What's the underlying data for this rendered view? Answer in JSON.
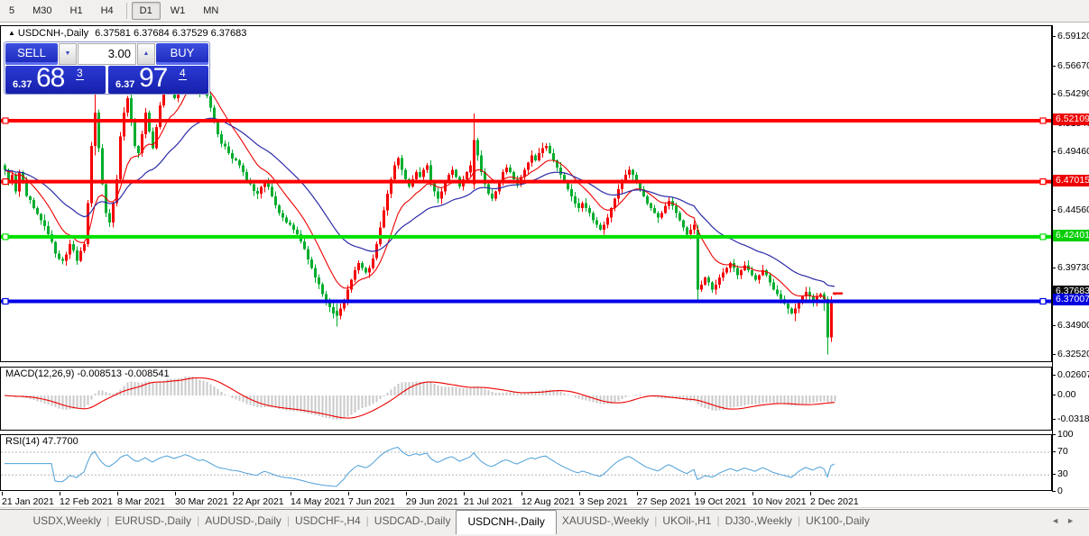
{
  "toolbar": {
    "items": [
      "5",
      "M30",
      "H1",
      "H4",
      "D1",
      "W1",
      "MN"
    ],
    "active": "D1",
    "separator_after": "H4"
  },
  "chart_header": {
    "direction_icon": "▲",
    "title": "USDCNH-,Daily",
    "ohlc": "6.37581 6.37684 6.37529 6.37683"
  },
  "trade_panel": {
    "sell_label": "SELL",
    "buy_label": "BUY",
    "volume": "3.00",
    "spinner_down_icon": "▼",
    "spinner_up_icon": "▲",
    "sell_price_prefix": "6.37",
    "sell_price_big": "68",
    "sell_price_pip": "3",
    "buy_price_prefix": "6.37",
    "buy_price_big": "97",
    "buy_price_pip": "4"
  },
  "price_axis": {
    "labels": [
      {
        "text": "6.59120",
        "price": 6.5912
      },
      {
        "text": "6.56670",
        "price": 6.5667
      },
      {
        "text": "6.54290",
        "price": 6.5429
      },
      {
        "text": "6.51840",
        "price": 6.5184
      },
      {
        "text": "6.49460",
        "price": 6.4946
      },
      {
        "text": "6.44560",
        "price": 6.4456
      },
      {
        "text": "6.39730",
        "price": 6.3973
      },
      {
        "text": "6.34900",
        "price": 6.349
      },
      {
        "text": "6.32520",
        "price": 6.3252
      }
    ],
    "badges": [
      {
        "text": "6.52109",
        "price": 6.52109,
        "bg": "#ee0000"
      },
      {
        "text": "6.47015",
        "price": 6.47015,
        "bg": "#ee0000"
      },
      {
        "text": "6.42401",
        "price": 6.42401,
        "bg": "#00ce00"
      },
      {
        "text": "6.37683",
        "price": 6.37683,
        "bg": "#0a0a0a"
      },
      {
        "text": "6.37007",
        "price": 6.37007,
        "bg": "#0000e0"
      }
    ]
  },
  "indicators": {
    "macd": {
      "label": "MACD(12,26,9) -0.008513 -0.008541",
      "axis": [
        {
          "text": "0.02607",
          "v": 0.02607
        },
        {
          "text": "0.00",
          "v": 0.0
        },
        {
          "text": "-0.03187",
          "v": -0.03187
        }
      ],
      "current_main": "-0.008513",
      "current_signal": "-0.008541"
    },
    "rsi": {
      "label": "RSI(14) 47.7700",
      "axis": [
        {
          "text": "100",
          "v": 100
        },
        {
          "text": "70",
          "v": 70
        },
        {
          "text": "30",
          "v": 30
        },
        {
          "text": "0",
          "v": 0
        }
      ],
      "levels": [
        70,
        30
      ],
      "current": "47.7700"
    }
  },
  "date_axis": [
    "21 Jan 2021",
    "12 Feb 2021",
    "8 Mar 2021",
    "30 Mar 2021",
    "22 Apr 2021",
    "14 May 2021",
    "7 Jun 2021",
    "29 Jun 2021",
    "21 Jul 2021",
    "12 Aug 2021",
    "3 Sep 2021",
    "27 Sep 2021",
    "19 Oct 2021",
    "10 Nov 2021",
    "2 Dec 2021"
  ],
  "tabs": {
    "items": [
      "USDX,Weekly",
      "EURUSD-,Daily",
      "AUDUSD-,Daily",
      "USDCHF-,H4",
      "USDCAD-,Daily",
      "USDCNH-,Daily",
      "XAUUSD-,Weekly",
      "UKOil-,H1",
      "DJ30-,Weekly",
      "UK100-,Daily"
    ],
    "active": "USDCNH-,Daily",
    "scroll_left_icon": "◄",
    "scroll_right_icon": "►"
  },
  "colors": {
    "bull": "#f50000",
    "bear": "#00ad2d",
    "ma_fast": "#ee0000",
    "ma_slow": "#2c2ca8",
    "macd_hist": "#c9c9c9",
    "macd_signal": "#ee0000",
    "rsi_line": "#4d9fd8",
    "level_red": "#ff0000",
    "level_green": "#00e000",
    "level_blue": "#0000e8",
    "panel_blue": "#2233cc"
  },
  "chart_data": {
    "type": "candlestick",
    "symbol": "USDCNH-",
    "timeframe": "Daily",
    "color_convention": "red = bullish, green = bearish",
    "ylim": [
      6.3184,
      6.6002
    ],
    "y_ticks": [
      "6.59120",
      "6.56670",
      "6.54290",
      "6.51840",
      "6.49460",
      "6.44560",
      "6.39730",
      "6.34900",
      "6.32520"
    ],
    "x_tick_labels": [
      "21 Jan 2021",
      "12 Feb 2021",
      "8 Mar 2021",
      "30 Mar 2021",
      "22 Apr 2021",
      "14 May 2021",
      "7 Jun 2021",
      "29 Jun 2021",
      "21 Jul 2021",
      "12 Aug 2021",
      "3 Sep 2021",
      "27 Sep 2021",
      "19 Oct 2021",
      "10 Nov 2021",
      "2 Dec 2021"
    ],
    "x_tick_indices": [
      0,
      16,
      32,
      48,
      64,
      80,
      96,
      112,
      128,
      144,
      160,
      176,
      192,
      208,
      224
    ],
    "num_candles": 231,
    "current_bar": {
      "open": 6.37581,
      "high": 6.37684,
      "low": 6.37529,
      "close": 6.37683
    },
    "horizontal_levels": [
      {
        "price": 6.52109,
        "color": "#ff0000",
        "width": 4
      },
      {
        "price": 6.47015,
        "color": "#ff0000",
        "width": 4
      },
      {
        "price": 6.42401,
        "color": "#00e000",
        "width": 4
      },
      {
        "price": 6.37007,
        "color": "#0000e8",
        "width": 4
      }
    ],
    "indicator_settings": {
      "ma_fast_period": 12,
      "ma_slow_period": 33,
      "macd": [
        12,
        26,
        9
      ],
      "rsi_period": 14
    },
    "close_waypoints": [
      [
        0,
        6.48
      ],
      [
        1,
        6.47
      ],
      [
        2,
        6.476
      ],
      [
        3,
        6.462
      ],
      [
        4,
        6.478
      ],
      [
        5,
        6.47
      ],
      [
        6,
        6.458
      ],
      [
        8,
        6.448
      ],
      [
        10,
        6.438
      ],
      [
        12,
        6.426
      ],
      [
        14,
        6.41
      ],
      [
        16,
        6.404
      ],
      [
        18,
        6.418
      ],
      [
        20,
        6.404
      ],
      [
        22,
        6.418
      ],
      [
        23,
        6.452
      ],
      [
        24,
        6.5
      ],
      [
        25,
        6.528
      ],
      [
        26,
        6.498
      ],
      [
        27,
        6.468
      ],
      [
        28,
        6.444
      ],
      [
        29,
        6.436
      ],
      [
        30,
        6.452
      ],
      [
        31,
        6.472
      ],
      [
        32,
        6.508
      ],
      [
        33,
        6.528
      ],
      [
        34,
        6.54
      ],
      [
        35,
        6.52
      ],
      [
        36,
        6.5
      ],
      [
        37,
        6.494
      ],
      [
        38,
        6.51
      ],
      [
        39,
        6.528
      ],
      [
        40,
        6.512
      ],
      [
        41,
        6.498
      ],
      [
        42,
        6.516
      ],
      [
        43,
        6.534
      ],
      [
        44,
        6.545
      ],
      [
        45,
        6.556
      ],
      [
        46,
        6.548
      ],
      [
        47,
        6.54
      ],
      [
        48,
        6.552
      ],
      [
        49,
        6.562
      ],
      [
        50,
        6.576
      ],
      [
        51,
        6.57
      ],
      [
        52,
        6.562
      ],
      [
        53,
        6.552
      ],
      [
        54,
        6.545
      ],
      [
        55,
        6.55
      ],
      [
        56,
        6.542
      ],
      [
        57,
        6.532
      ],
      [
        58,
        6.52
      ],
      [
        59,
        6.51
      ],
      [
        60,
        6.502
      ],
      [
        62,
        6.494
      ],
      [
        64,
        6.488
      ],
      [
        66,
        6.478
      ],
      [
        68,
        6.468
      ],
      [
        70,
        6.46
      ],
      [
        72,
        6.47
      ],
      [
        74,
        6.458
      ],
      [
        76,
        6.444
      ],
      [
        78,
        6.436
      ],
      [
        80,
        6.43
      ],
      [
        82,
        6.42
      ],
      [
        84,
        6.405
      ],
      [
        86,
        6.39
      ],
      [
        88,
        6.376
      ],
      [
        90,
        6.365
      ],
      [
        92,
        6.358
      ],
      [
        93,
        6.364
      ],
      [
        94,
        6.37
      ],
      [
        95,
        6.38
      ],
      [
        96,
        6.388
      ],
      [
        97,
        6.396
      ],
      [
        98,
        6.402
      ],
      [
        99,
        6.398
      ],
      [
        100,
        6.394
      ],
      [
        101,
        6.398
      ],
      [
        102,
        6.406
      ],
      [
        103,
        6.418
      ],
      [
        104,
        6.432
      ],
      [
        105,
        6.446
      ],
      [
        106,
        6.46
      ],
      [
        107,
        6.472
      ],
      [
        108,
        6.484
      ],
      [
        109,
        6.49
      ],
      [
        110,
        6.48
      ],
      [
        111,
        6.472
      ],
      [
        112,
        6.466
      ],
      [
        113,
        6.472
      ],
      [
        114,
        6.478
      ],
      [
        115,
        6.474
      ],
      [
        116,
        6.48
      ],
      [
        117,
        6.484
      ],
      [
        118,
        6.47
      ],
      [
        119,
        6.462
      ],
      [
        120,
        6.456
      ],
      [
        121,
        6.462
      ],
      [
        122,
        6.47
      ],
      [
        123,
        6.476
      ],
      [
        124,
        6.48
      ],
      [
        125,
        6.474
      ],
      [
        126,
        6.466
      ],
      [
        127,
        6.472
      ],
      [
        128,
        6.478
      ],
      [
        129,
        6.484
      ],
      [
        130,
        6.505
      ],
      [
        131,
        6.492
      ],
      [
        132,
        6.478
      ],
      [
        133,
        6.468
      ],
      [
        134,
        6.46
      ],
      [
        135,
        6.456
      ],
      [
        136,
        6.462
      ],
      [
        137,
        6.47
      ],
      [
        138,
        6.478
      ],
      [
        139,
        6.482
      ],
      [
        140,
        6.478
      ],
      [
        141,
        6.472
      ],
      [
        142,
        6.468
      ],
      [
        143,
        6.474
      ],
      [
        144,
        6.48
      ],
      [
        145,
        6.486
      ],
      [
        146,
        6.492
      ],
      [
        147,
        6.488
      ],
      [
        148,
        6.494
      ],
      [
        149,
        6.498
      ],
      [
        150,
        6.5
      ],
      [
        151,
        6.494
      ],
      [
        152,
        6.488
      ],
      [
        153,
        6.482
      ],
      [
        154,
        6.476
      ],
      [
        155,
        6.47
      ],
      [
        156,
        6.464
      ],
      [
        157,
        6.458
      ],
      [
        158,
        6.452
      ],
      [
        159,
        6.448
      ],
      [
        160,
        6.452
      ],
      [
        161,
        6.448
      ],
      [
        162,
        6.444
      ],
      [
        163,
        6.438
      ],
      [
        164,
        6.434
      ],
      [
        165,
        6.43
      ],
      [
        166,
        6.434
      ],
      [
        167,
        6.44
      ],
      [
        168,
        6.448
      ],
      [
        169,
        6.456
      ],
      [
        170,
        6.464
      ],
      [
        171,
        6.47
      ],
      [
        172,
        6.476
      ],
      [
        173,
        6.48
      ],
      [
        174,
        6.476
      ],
      [
        175,
        6.47
      ],
      [
        176,
        6.464
      ],
      [
        177,
        6.458
      ],
      [
        178,
        6.452
      ],
      [
        179,
        6.448
      ],
      [
        180,
        6.444
      ],
      [
        181,
        6.44
      ],
      [
        182,
        6.444
      ],
      [
        183,
        6.45
      ],
      [
        184,
        6.454
      ],
      [
        185,
        6.45
      ],
      [
        186,
        6.444
      ],
      [
        187,
        6.438
      ],
      [
        188,
        6.432
      ],
      [
        189,
        6.426
      ],
      [
        190,
        6.43
      ],
      [
        191,
        6.434
      ],
      [
        192,
        6.38
      ],
      [
        193,
        6.384
      ],
      [
        194,
        6.39
      ],
      [
        195,
        6.386
      ],
      [
        196,
        6.38
      ],
      [
        197,
        6.384
      ],
      [
        198,
        6.39
      ],
      [
        199,
        6.394
      ],
      [
        200,
        6.398
      ],
      [
        201,
        6.402
      ],
      [
        202,
        6.398
      ],
      [
        203,
        6.392
      ],
      [
        204,
        6.396
      ],
      [
        205,
        6.4
      ],
      [
        206,
        6.396
      ],
      [
        207,
        6.392
      ],
      [
        208,
        6.388
      ],
      [
        209,
        6.392
      ],
      [
        210,
        6.396
      ],
      [
        211,
        6.392
      ],
      [
        212,
        6.386
      ],
      [
        213,
        6.38
      ],
      [
        214,
        6.376
      ],
      [
        215,
        6.372
      ],
      [
        216,
        6.368
      ],
      [
        217,
        6.364
      ],
      [
        218,
        6.36
      ],
      [
        219,
        6.364
      ],
      [
        220,
        6.37
      ],
      [
        221,
        6.374
      ],
      [
        222,
        6.378
      ],
      [
        223,
        6.374
      ],
      [
        224,
        6.37
      ],
      [
        225,
        6.374
      ],
      [
        226,
        6.376
      ],
      [
        227,
        6.372
      ],
      [
        228,
        6.34
      ],
      [
        229,
        6.371
      ],
      [
        230,
        6.37683
      ]
    ],
    "candle_overrides": {
      "25": [
        6.5,
        6.556,
        6.492,
        6.528
      ],
      "50": [
        6.562,
        6.5848,
        6.558,
        6.576
      ],
      "51": [
        6.576,
        6.5805,
        6.56,
        6.57
      ],
      "92": [
        6.362,
        6.368,
        6.349,
        6.358
      ],
      "130": [
        6.468,
        6.527,
        6.464,
        6.505
      ],
      "192": [
        6.43,
        6.434,
        6.3705,
        6.38
      ],
      "219": [
        6.36,
        6.368,
        6.3535,
        6.364
      ],
      "227": [
        6.376,
        6.378,
        6.362,
        6.372
      ],
      "228": [
        6.372,
        6.374,
        6.3255,
        6.34
      ],
      "229": [
        6.34,
        6.374,
        6.336,
        6.371
      ],
      "230": [
        6.37581,
        6.37684,
        6.37529,
        6.37683
      ]
    }
  }
}
